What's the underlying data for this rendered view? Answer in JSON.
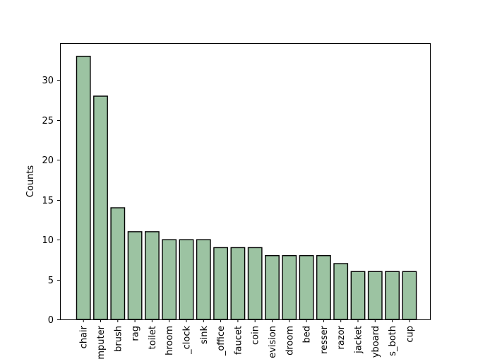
{
  "chart_data": {
    "type": "bar",
    "title": "",
    "xlabel": "",
    "ylabel": "Counts",
    "ylim": [
      0,
      34.65
    ],
    "yticks": [
      0,
      5,
      10,
      15,
      20,
      25,
      30
    ],
    "grid": false,
    "legend": "none",
    "bar_color": "#9cc3a2",
    "edge_color": "#000000",
    "categories": [
      "chair",
      "mputer",
      "brush",
      "rag",
      "toilet",
      "hroom",
      "_clock",
      "sink",
      "_office",
      "faucet",
      "coin",
      "evision",
      "droom",
      "bed",
      "resser",
      "razor",
      "jacket",
      "yboard",
      "s_both",
      "cup"
    ],
    "values": [
      33,
      28,
      14,
      11,
      11,
      10,
      10,
      10,
      9,
      9,
      9,
      8,
      8,
      8,
      8,
      7,
      6,
      6,
      6,
      6
    ]
  }
}
